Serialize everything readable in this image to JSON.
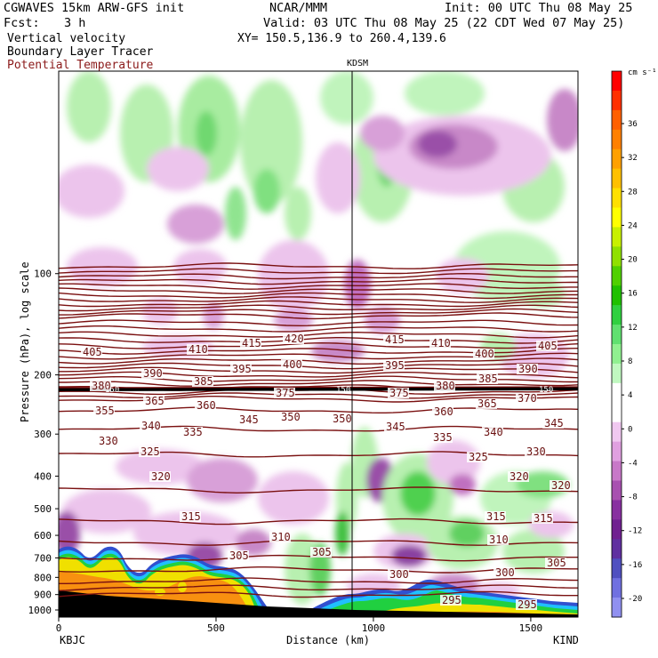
{
  "header": {
    "model": "CGWAVES 15km ARW-GFS init",
    "org": "NCAR/MMM",
    "init": "Init: 00 UTC Thu 08 May 25",
    "fcst_label": "Fcst:",
    "fcst_value": "3 h",
    "valid": "Valid: 03 UTC Thu 08 May 25 (22 CDT Wed 07 May 25)",
    "field1": "Vertical velocity",
    "xy": "XY= 150.5,136.9 to 260.4,139.6",
    "field2": "Boundary Layer Tracer",
    "field3": "Potential Temperature",
    "field3_color": "#8b1a1a"
  },
  "chart_data": {
    "type": "heatmap",
    "xlabel": "Distance (km)",
    "ylabel": "Pressure (hPa), log scale",
    "x_ticks": [
      0,
      500,
      1000,
      1500
    ],
    "xlim": [
      0,
      1650
    ],
    "y_ticks": [
      100,
      200,
      300,
      400,
      500,
      600,
      700,
      800,
      900,
      1000
    ],
    "y_scale": "log",
    "ylim": [
      1050,
      25
    ],
    "station_left": "KBJC",
    "station_right": "KIND",
    "station_mid": "KDSM",
    "station_mid_x": 950,
    "colorbar": {
      "unit": "cm s⁻¹",
      "labels": [
        36,
        32,
        28,
        24,
        20,
        16,
        12,
        8,
        4,
        0,
        -4,
        -8,
        -12,
        -16,
        -20
      ],
      "colors": [
        "#ff0000",
        "#ff3000",
        "#ff6000",
        "#ff8000",
        "#ffa000",
        "#ffc000",
        "#ffe000",
        "#ffff00",
        "#c8f000",
        "#90e000",
        "#50d000",
        "#20c000",
        "#30d040",
        "#60e070",
        "#90f090",
        "#c0f8c0",
        "#ffffff",
        "#ffffff",
        "#f0c8f0",
        "#e0a0e0",
        "#c878c8",
        "#a850b0",
        "#8830a0",
        "#702090",
        "#6030a0",
        "#5050c0",
        "#7070e0",
        "#9090f0"
      ]
    },
    "isentropes": [
      {
        "label": "405",
        "pressure": 107
      },
      {
        "label": "410",
        "pressure": 104
      },
      {
        "label": "415",
        "pressure": 99
      },
      {
        "label": "420",
        "pressure": 96
      },
      {
        "label": "400",
        "pressure": 122
      },
      {
        "label": "395",
        "pressure": 129
      },
      {
        "label": "390",
        "pressure": 132
      },
      {
        "label": "385",
        "pressure": 141
      },
      {
        "label": "380",
        "pressure": 154
      },
      {
        "label": "375",
        "pressure": 163
      },
      {
        "label": "370",
        "pressure": 170
      },
      {
        "label": "365",
        "pressure": 172
      },
      {
        "label": "360",
        "pressure": 180
      },
      {
        "label": "355",
        "pressure": 185
      },
      {
        "label": "350",
        "pressure": 195
      },
      {
        "label": "345",
        "pressure": 200
      },
      {
        "label": "340",
        "pressure": 210
      },
      {
        "label": "335",
        "pressure": 220
      },
      {
        "label": "330",
        "pressure": 235
      },
      {
        "label": "325",
        "pressure": 260
      },
      {
        "label": "320",
        "pressure": 300
      },
      {
        "label": "315",
        "pressure": 450
      },
      {
        "label": "310",
        "pressure": 560
      },
      {
        "label": "305",
        "pressure": 640
      },
      {
        "label": "300",
        "pressure": 720
      },
      {
        "label": "295",
        "pressure": 880
      }
    ],
    "tropopause_label": "150"
  }
}
